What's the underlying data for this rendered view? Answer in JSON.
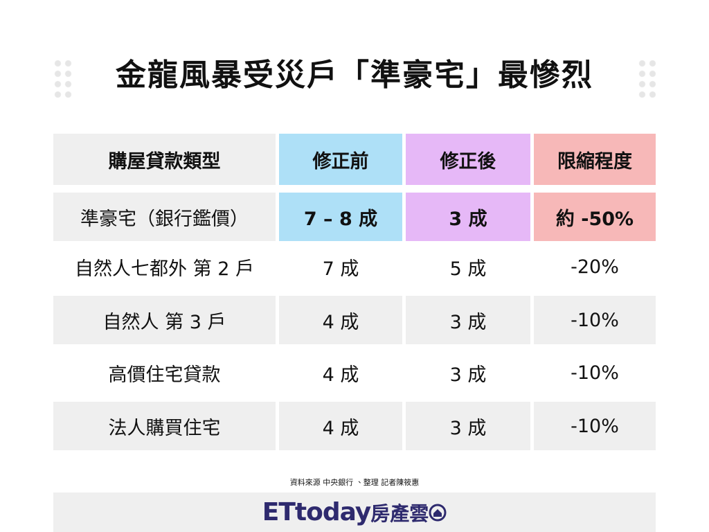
{
  "header": {
    "title": "金龍風暴受災戶「準豪宅」最慘烈"
  },
  "table": {
    "columns": [
      "購屋貸款類型",
      "修正前",
      "修正後",
      "限縮程度"
    ],
    "rows": [
      [
        "準豪宅（銀行鑑價）",
        "7 – 8 成",
        "3 成",
        "約 -50%"
      ],
      [
        "自然人七都外 第 2 戶",
        "7 成",
        "5 成",
        "-20%"
      ],
      [
        "自然人 第 3 戶",
        "4 成",
        "3 成",
        "-10%"
      ],
      [
        "高價住宅貸款",
        "4 成",
        "3 成",
        "-10%"
      ],
      [
        "法人購買住宅",
        "4 成",
        "3 成",
        "-10%"
      ]
    ]
  },
  "footer": {
    "source": "資料來源 中央銀行 、整理 記者陳筱惠",
    "logo_brand": "ETtoday",
    "logo_suffix": "房產雲"
  }
}
